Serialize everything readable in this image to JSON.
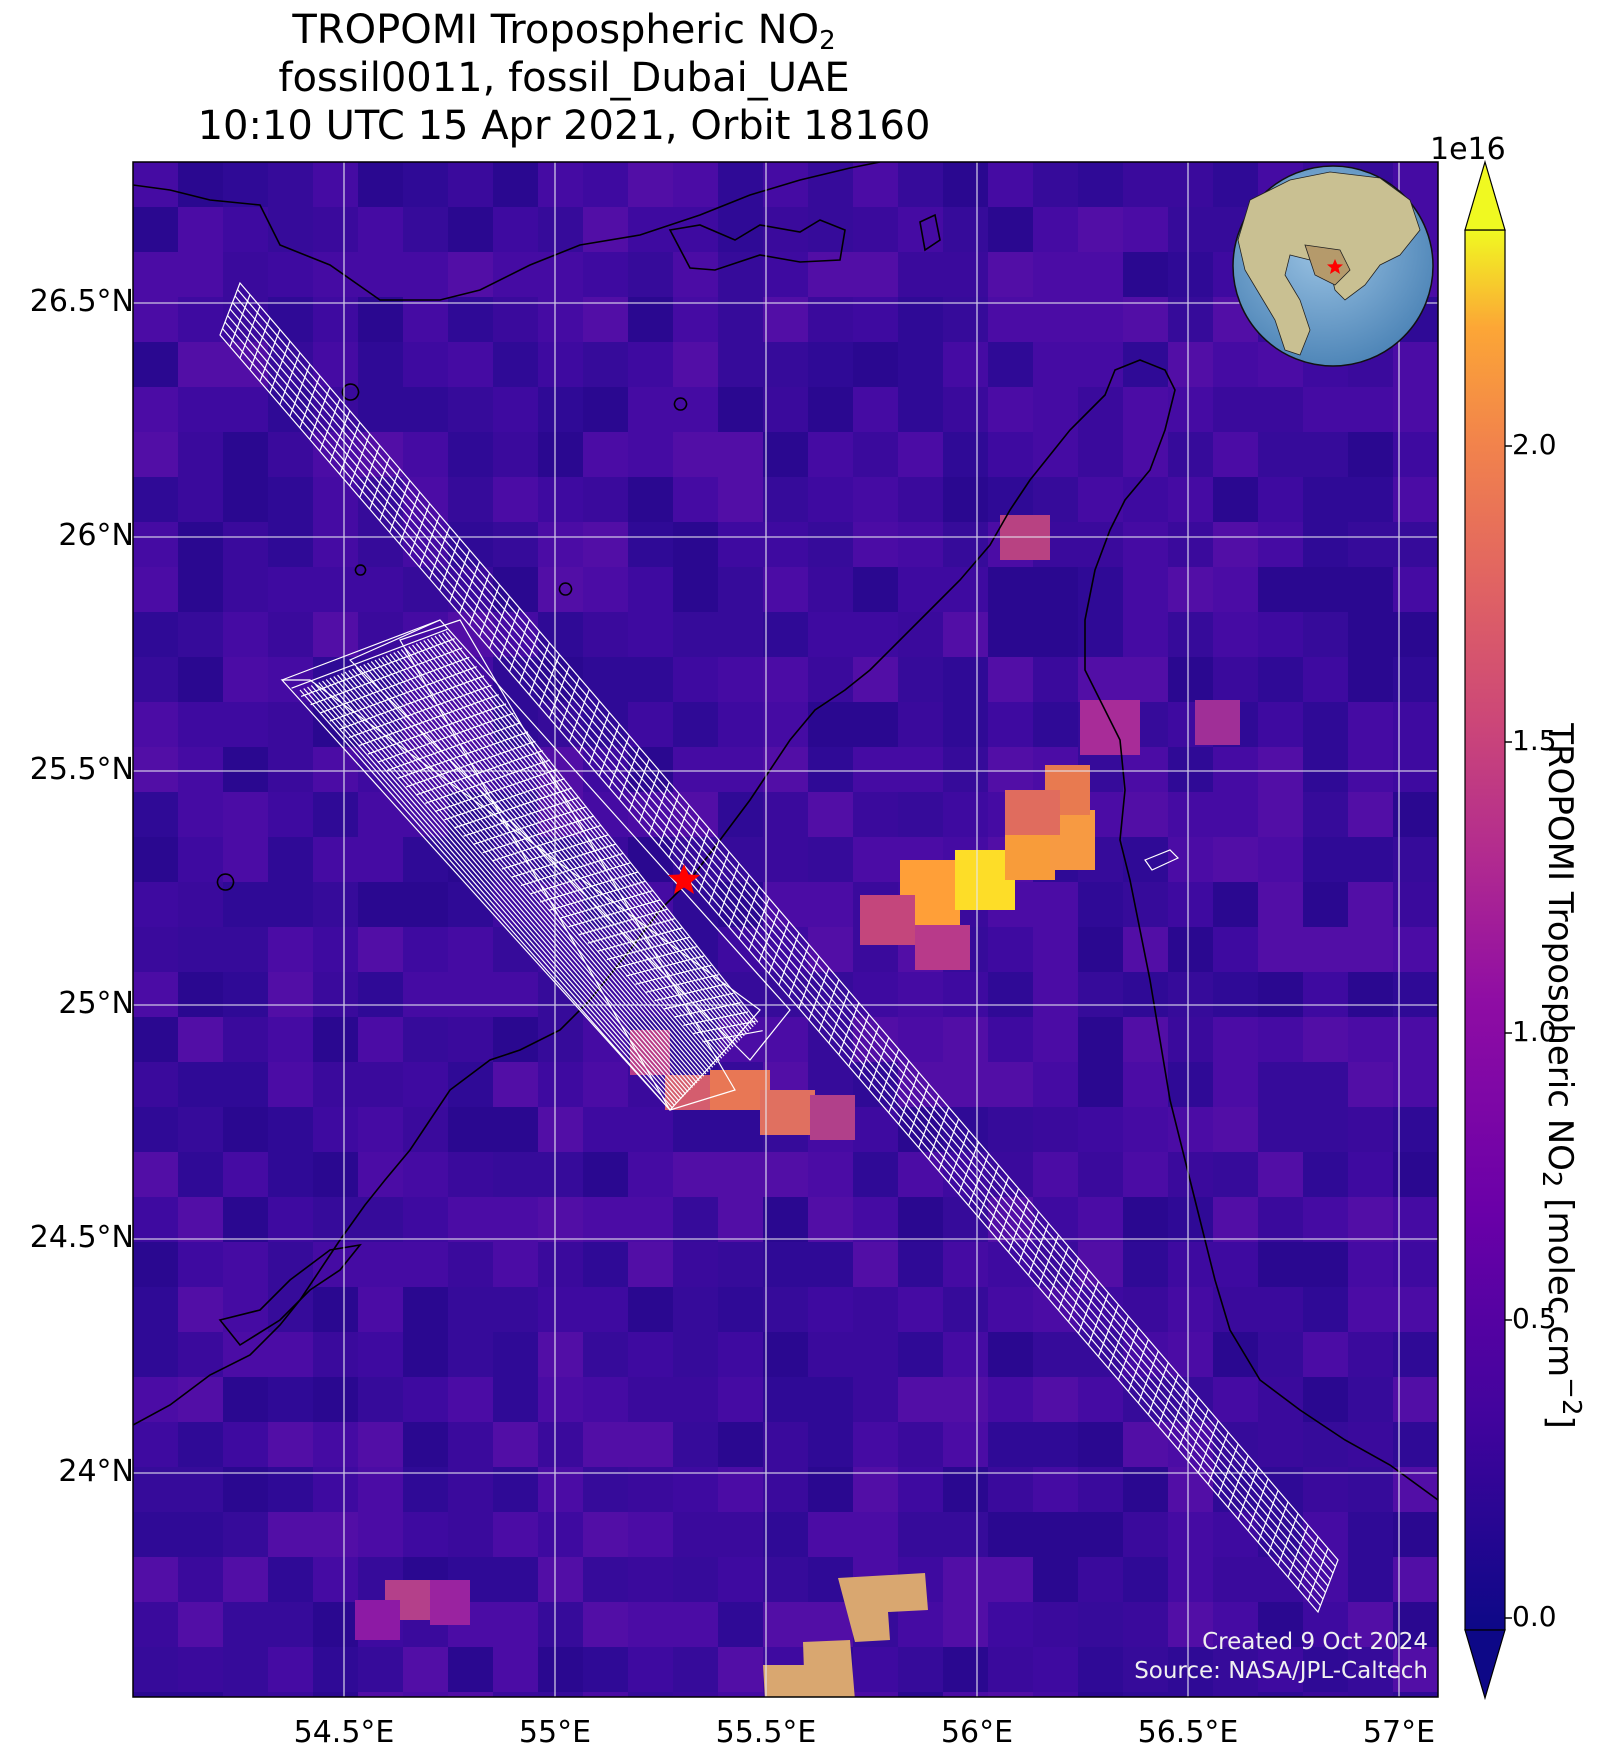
{
  "title": {
    "line1_main": "TROPOMI Tropospheric NO",
    "line1_sub": "2",
    "line2": "fossil0011, fossil_Dubai_UAE",
    "line3": "10:10 UTC 15 Apr 2021, Orbit 18160"
  },
  "map": {
    "lat_ticks": [
      "26.5°N",
      "26°N",
      "25.5°N",
      "25°N",
      "24.5°N",
      "24°N"
    ],
    "lon_ticks": [
      "54.5°E",
      "55°E",
      "55.5°E",
      "56°E",
      "56.5°E",
      "57°E"
    ],
    "target_marker": {
      "lon": 55.31,
      "lat": 25.27,
      "color": "#ff0000"
    },
    "grid": true,
    "inset_globe": {
      "marker_color": "#ff0000"
    }
  },
  "colorbar": {
    "exponent": "1e16",
    "ticks": [
      "0.0",
      "0.5",
      "1.0",
      "1.5",
      "2.0"
    ],
    "label_main": "TROPOMI Tropospheric NO",
    "label_sub": "2",
    "label_units": " [molec cm",
    "label_sup": "−2",
    "label_end": "]",
    "colormap": "plasma"
  },
  "footer": {
    "created": "Created 9 Oct 2024",
    "source": "Source: NASA/JPL-Caltech"
  }
}
